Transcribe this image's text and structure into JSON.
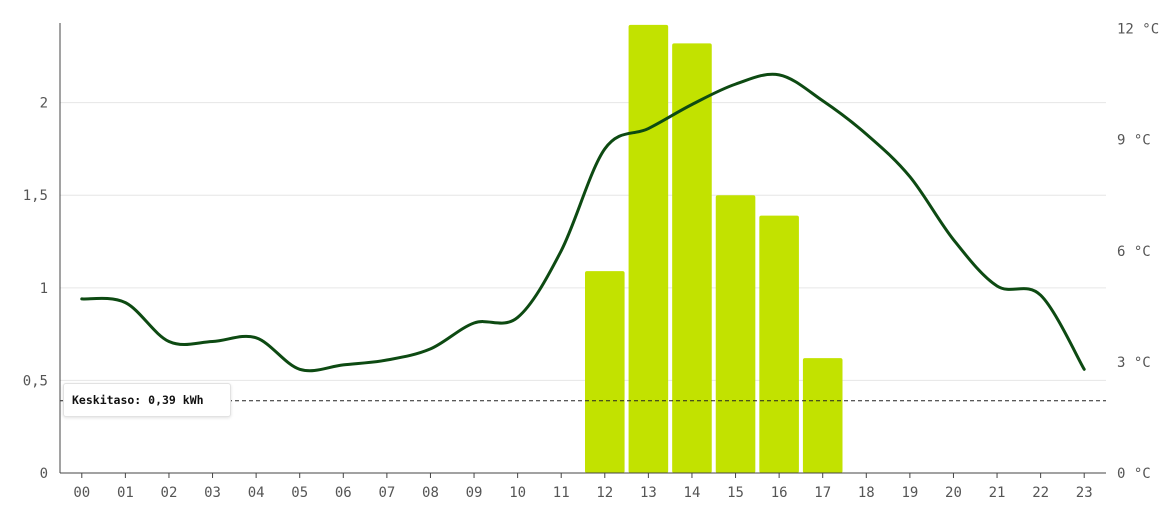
{
  "chart_data": {
    "type": "bar",
    "categories": [
      "00",
      "01",
      "02",
      "03",
      "04",
      "05",
      "06",
      "07",
      "08",
      "09",
      "10",
      "11",
      "12",
      "13",
      "14",
      "15",
      "16",
      "17",
      "18",
      "19",
      "20",
      "21",
      "22",
      "23"
    ],
    "series": [
      {
        "axis": "left",
        "values": [
          0,
          0,
          0,
          0,
          0,
          0,
          0,
          0,
          0,
          0,
          0,
          0,
          1.09,
          2.42,
          2.32,
          1.5,
          1.39,
          0.62,
          0,
          0,
          0,
          0,
          0,
          0
        ]
      }
    ],
    "line_series": [
      {
        "axis": "right",
        "type": "line",
        "values": [
          4.7,
          4.6,
          3.55,
          3.55,
          3.65,
          2.8,
          2.92,
          3.05,
          3.35,
          4.05,
          4.2,
          6.0,
          8.75,
          9.3,
          9.95,
          10.5,
          10.75,
          10.05,
          9.15,
          8.0,
          6.3,
          5.05,
          4.8,
          2.8
        ]
      }
    ],
    "y_left": {
      "ticks": [
        "0",
        "0,5",
        "1",
        "1,5",
        "2"
      ],
      "tick_values": [
        0,
        0.5,
        1,
        1.5,
        2
      ],
      "ylim": [
        0,
        2.43
      ]
    },
    "y_right": {
      "ticks": [
        "0 °C",
        "3 °C",
        "6 °C",
        "9 °C",
        "12 °C"
      ],
      "tick_values": [
        0,
        3,
        6,
        9,
        12
      ],
      "ylim": [
        0,
        12.15
      ]
    },
    "reference_line": {
      "value": 0.39,
      "label": "Keskitaso: 0,39 kWh"
    },
    "grid": true,
    "colors": {
      "bar": "#c2e200",
      "line": "#0d4a12",
      "grid": "#e6e6e6",
      "reference": "#222222"
    }
  }
}
